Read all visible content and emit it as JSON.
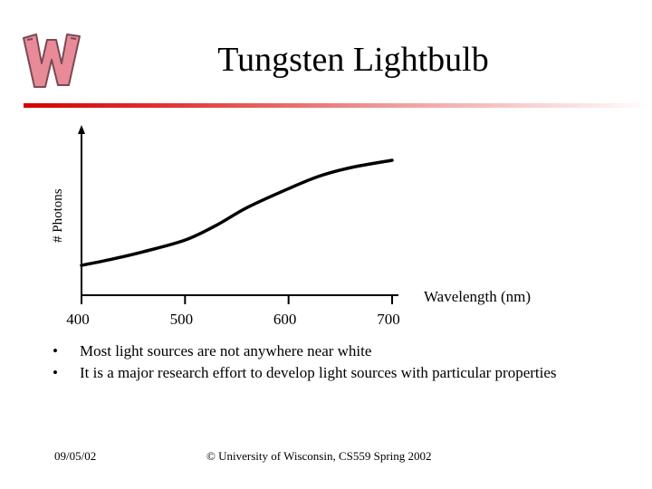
{
  "slide": {
    "title": "Tungsten Lightbulb",
    "bullets": [
      "Most light sources are not anywhere near white",
      "It is a major research effort to develop light sources with particular properties"
    ],
    "footer": {
      "date": "09/05/02",
      "copyright": "© University of Wisconsin, CS559 Spring 2002"
    },
    "logo_icon": "wisconsin-w-logo-icon",
    "colors": {
      "rule_start": "#d40000",
      "logo_fill": "#e88a98",
      "logo_stroke": "#7a4a55",
      "axis": "#000000"
    }
  },
  "chart_data": {
    "type": "line",
    "title": "",
    "xlabel": "Wavelength (nm)",
    "ylabel": "# Photons",
    "x_ticks": [
      400,
      500,
      600,
      700
    ],
    "xlim": [
      400,
      700
    ],
    "ylim": [
      0,
      1
    ],
    "grid": false,
    "series": [
      {
        "name": "Tungsten Lightbulb",
        "x": [
          400,
          430,
          460,
          500,
          530,
          560,
          600,
          630,
          660,
          700
        ],
        "y": [
          0.0,
          0.06,
          0.13,
          0.24,
          0.38,
          0.55,
          0.73,
          0.85,
          0.93,
          1.0
        ]
      }
    ]
  }
}
